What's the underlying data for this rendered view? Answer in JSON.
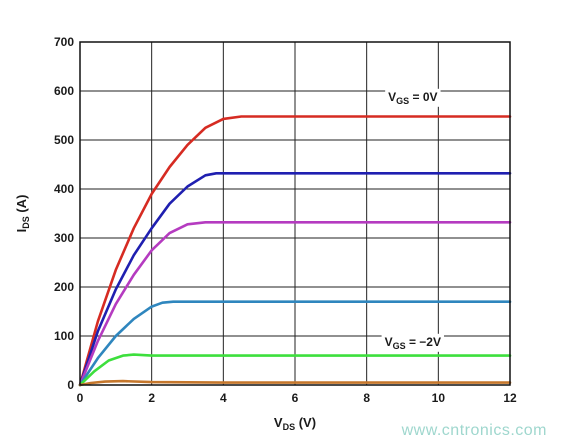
{
  "chart_data": {
    "type": "line",
    "xlabel": {
      "main": "V",
      "sub": "DS",
      "rest": " (V)"
    },
    "ylabel": {
      "main": "I",
      "sub": "DS",
      "rest": " (A)"
    },
    "xlim": [
      0,
      12
    ],
    "ylim": [
      0,
      700
    ],
    "x_ticks": [
      "0",
      "2",
      "4",
      "6",
      "8",
      "10",
      "12"
    ],
    "y_ticks": [
      "0",
      "100",
      "200",
      "300",
      "400",
      "500",
      "600",
      "700"
    ],
    "grid": true,
    "annotations": [
      {
        "main": "V",
        "sub": "GS",
        "rest": " = 0V",
        "x": 8.6,
        "y": 580
      },
      {
        "main": "V",
        "sub": "GS",
        "rest": " = −2V",
        "x": 8.5,
        "y": 80
      }
    ],
    "series": [
      {
        "color": "#d62b22",
        "x": [
          0,
          0.5,
          1,
          1.5,
          2,
          2.5,
          3,
          3.5,
          4,
          4.5,
          5,
          6,
          8,
          10,
          12
        ],
        "values": [
          0,
          130,
          235,
          320,
          390,
          445,
          490,
          525,
          543,
          548,
          548,
          548,
          548,
          548,
          548
        ]
      },
      {
        "color": "#1f1fb0",
        "x": [
          0,
          0.5,
          1,
          1.5,
          2,
          2.5,
          3,
          3.5,
          3.8,
          4,
          6,
          8,
          10,
          12
        ],
        "values": [
          0,
          110,
          195,
          265,
          320,
          370,
          405,
          428,
          432,
          432,
          432,
          432,
          432,
          432
        ]
      },
      {
        "color": "#b53bc0",
        "x": [
          0,
          0.5,
          1,
          1.5,
          2,
          2.5,
          3,
          3.5,
          4,
          6,
          8,
          10,
          12
        ],
        "values": [
          0,
          90,
          165,
          225,
          275,
          310,
          328,
          332,
          332,
          332,
          332,
          332,
          332
        ]
      },
      {
        "color": "#2f86be",
        "x": [
          0,
          0.5,
          1,
          1.5,
          2,
          2.3,
          2.6,
          4,
          6,
          8,
          10,
          12
        ],
        "values": [
          0,
          55,
          100,
          135,
          160,
          168,
          170,
          170,
          170,
          170,
          170,
          170
        ]
      },
      {
        "color": "#3ddf3d",
        "x": [
          0,
          0.4,
          0.8,
          1.2,
          1.5,
          2,
          4,
          6,
          8,
          10,
          12
        ],
        "values": [
          0,
          28,
          50,
          60,
          62,
          60,
          60,
          60,
          60,
          60,
          60
        ]
      },
      {
        "color": "#c5772c",
        "x": [
          0,
          0.3,
          0.7,
          1.2,
          2,
          4,
          6,
          8,
          10,
          12
        ],
        "values": [
          0,
          4,
          7,
          8,
          6,
          5,
          5,
          5,
          5,
          5
        ]
      }
    ]
  },
  "watermark": "www.cntronics.com"
}
